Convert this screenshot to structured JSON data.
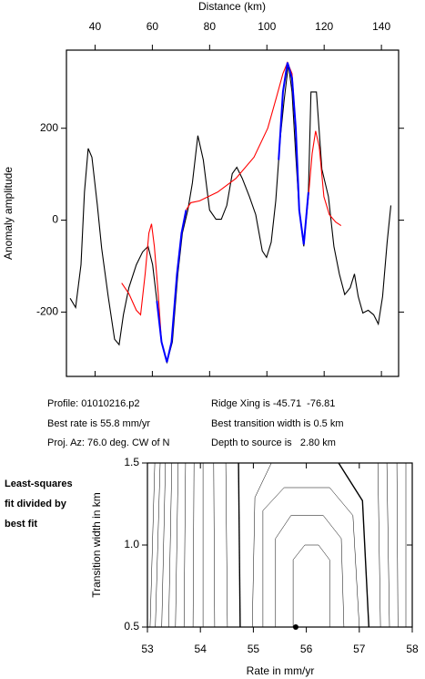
{
  "chart_data": [
    {
      "type": "line",
      "title": "Distance (km)",
      "y_label": "Anomaly amplitude",
      "xlim": [
        30,
        146
      ],
      "xticks": [
        40,
        60,
        80,
        100,
        120,
        140
      ],
      "ylim": [
        -340,
        370
      ],
      "yticks": [
        -200,
        0,
        200
      ],
      "x_axis_position": "top",
      "annotations": [
        "Profile: 01010216.p2",
        "Best rate is 55.8 mm/yr",
        "Proj. Az: 76.0 deg. CW of N",
        "Ridge Xing is -45.71  -76.81",
        "Best transition width is 0.5 km",
        "Depth to source is   2.80 km"
      ],
      "series": [
        {
          "color": "#000000",
          "x": [
            31.3,
            33.2,
            35.1,
            36.3,
            37.6,
            38.9,
            40.8,
            42.3,
            44.6,
            46.8,
            48.4,
            49.9,
            51.8,
            54.4,
            56.6,
            58.5,
            60.1,
            61.6,
            63.2,
            65.1,
            67.0,
            68.9,
            70.5,
            72.4,
            74.0,
            75.9,
            77.8,
            80.0,
            82.2,
            84.1,
            86.0,
            87.9,
            89.5,
            91.4,
            93.9,
            96.1,
            98.4,
            99.9,
            101.5,
            103.1,
            104.7,
            106.0,
            107.5,
            108.8,
            110.1,
            111.3,
            112.9,
            114.5,
            115.4,
            117.3,
            119.2,
            121.5,
            123.4,
            125.3,
            127.2,
            129.1,
            130.6,
            131.9,
            133.5,
            135.4,
            137.3,
            138.9,
            140.4,
            142.0,
            143.3
          ],
          "values": [
            -170,
            -190,
            -97,
            61,
            156,
            137,
            32,
            -61,
            -166,
            -259,
            -271,
            -206,
            -147,
            -97,
            -69,
            -57,
            -97,
            -176,
            -265,
            -309,
            -265,
            -117,
            -28,
            22,
            81,
            184,
            131,
            22,
            2,
            2,
            32,
            101,
            115,
            91,
            51,
            12,
            -67,
            -81,
            -48,
            42,
            180,
            259,
            339,
            279,
            141,
            22,
            -57,
            61,
            279,
            279,
            111,
            51,
            -57,
            -117,
            -162,
            -147,
            -117,
            -166,
            -202,
            -196,
            -206,
            -226,
            -166,
            -48,
            32
          ]
        },
        {
          "color": "#ff0000",
          "x": [
            49.3,
            51.8,
            54.4,
            55.9,
            57.5,
            58.8,
            59.7,
            60.7,
            62.0,
            63.2,
            65.1,
            66.7,
            68.6,
            70.2,
            71.8,
            73.4,
            76.5,
            82.8,
            89.2,
            95.5,
            100.3,
            103.4,
            105.6,
            107.2,
            108.8,
            110.1,
            111.3,
            112.9,
            114.5,
            115.8,
            117.0,
            118.3,
            119.9,
            121.8,
            124.0,
            125.9
          ],
          "values": [
            -137,
            -160,
            -196,
            -206,
            -117,
            -28,
            -8,
            -57,
            -156,
            -265,
            -309,
            -265,
            -117,
            -28,
            22,
            38,
            42,
            61,
            91,
            137,
            200,
            269,
            319,
            343,
            319,
            200,
            22,
            -53,
            51,
            145,
            194,
            160,
            51,
            12,
            -4,
            -12
          ]
        },
        {
          "color": "#0000ff",
          "x": [
            61.6,
            63.2,
            65.1,
            66.7,
            68.6,
            70.2,
            71.8,
            null,
            104.1,
            105.6,
            107.2,
            108.8,
            110.1,
            111.3,
            112.9,
            114.5
          ],
          "values": [
            -176,
            -265,
            -309,
            -265,
            -117,
            -28,
            22,
            null,
            131,
            279,
            343,
            309,
            200,
            22,
            -53,
            61
          ]
        }
      ]
    },
    {
      "type": "contour",
      "x_label": "Rate in mm/yr",
      "y_label": "Transition width in km",
      "annotations": [
        "Least-squares",
        "fit divided by",
        "best fit"
      ],
      "xlim": [
        53,
        58
      ],
      "xticks": [
        53,
        54,
        55,
        56,
        57,
        58
      ],
      "ylim": [
        0.5,
        1.5
      ],
      "yticks": [
        {
          "value": 0.5,
          "label": "0.5"
        },
        {
          "value": 1.0,
          "label": "1.0"
        },
        {
          "value": 1.5,
          "label": "1.5"
        }
      ],
      "best_fit": {
        "x": 55.8,
        "y": 0.5
      },
      "contours": [
        {
          "x": [
            53.05,
            53.14
          ],
          "y": [
            0.5,
            1.5
          ]
        },
        {
          "x": [
            53.15,
            53.24
          ],
          "y": [
            0.5,
            1.5
          ]
        },
        {
          "x": [
            53.27,
            53.34
          ],
          "y": [
            0.5,
            1.5
          ]
        },
        {
          "x": [
            53.4,
            53.46
          ],
          "y": [
            0.5,
            1.5
          ]
        },
        {
          "x": [
            53.53,
            53.58
          ],
          "y": [
            0.5,
            1.5
          ]
        },
        {
          "x": [
            53.69,
            53.72
          ],
          "y": [
            0.5,
            1.5
          ]
        },
        {
          "x": [
            53.86,
            53.88
          ],
          "y": [
            0.5,
            1.5
          ]
        },
        {
          "x": [
            54.05,
            54.05
          ],
          "y": [
            0.5,
            1.5
          ]
        },
        {
          "x": [
            54.27,
            54.25
          ],
          "y": [
            0.5,
            1.5
          ]
        },
        {
          "x": [
            54.51,
            54.48
          ],
          "y": [
            0.5,
            1.5
          ]
        },
        {
          "x": [
            54.75,
            54.72
          ],
          "y": [
            0.5,
            1.5
          ],
          "bold": true
        },
        {
          "x": [
            54.98,
            55.03,
            55.34
          ],
          "y": [
            0.5,
            1.29,
            1.5
          ]
        },
        {
          "x": [
            55.18,
            55.18,
            55.58,
            56.44,
            56.88,
            57.0
          ],
          "y": [
            0.5,
            1.21,
            1.35,
            1.35,
            1.18,
            0.5
          ]
        },
        {
          "x": [
            55.42,
            55.42,
            55.71,
            56.32,
            56.66,
            56.71
          ],
          "y": [
            0.5,
            1.04,
            1.18,
            1.18,
            1.04,
            0.5
          ]
        },
        {
          "x": [
            55.75,
            55.75,
            55.97,
            56.23,
            56.44,
            56.44
          ],
          "y": [
            0.5,
            0.91,
            1.0,
            1.0,
            0.91,
            0.5
          ]
        },
        {
          "x": [
            56.61,
            57.06,
            57.18
          ],
          "y": [
            1.5,
            1.27,
            0.5
          ],
          "bold": true
        },
        {
          "x": [
            57.4,
            57.35
          ],
          "y": [
            0.5,
            1.5
          ]
        },
        {
          "x": [
            57.57,
            57.52
          ],
          "y": [
            0.5,
            1.5
          ]
        },
        {
          "x": [
            57.73,
            57.71
          ],
          "y": [
            0.5,
            1.5
          ]
        },
        {
          "x": [
            57.88,
            57.88
          ],
          "y": [
            0.5,
            1.5
          ]
        }
      ]
    }
  ]
}
